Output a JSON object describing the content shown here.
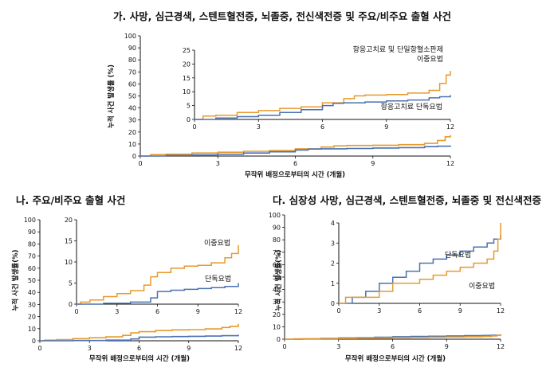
{
  "colors": {
    "dual": "#E69A2E",
    "single": "#4A72B0",
    "axis": "#111111"
  },
  "chart_data": [
    {
      "id": "A",
      "type": "line",
      "title": "가. 사망, 심근경색, 스텐트혈전증, 뇌졸중, 전신색전증 및 주요/비주요 출혈 사건",
      "xlabel": "무작위 배정으로부터의 시간 (개월)",
      "ylabel": "누적 사건 발생률 (%)",
      "xlim": [
        0,
        12
      ],
      "ylim": [
        0,
        100
      ],
      "xticks": [
        "0",
        "3",
        "6",
        "9",
        "12"
      ],
      "yticks": [
        "0",
        "10",
        "20",
        "30",
        "40",
        "50",
        "60",
        "70",
        "80",
        "90",
        "100"
      ],
      "series": [
        {
          "key": "dual",
          "name": "항응고치료 및 단일항혈소판제 이중요법",
          "x": [
            0,
            0.4,
            1,
            2,
            3,
            4,
            5,
            6,
            7,
            7.5,
            8,
            9,
            10,
            11,
            11.5,
            11.8,
            12
          ],
          "y": [
            0,
            1.2,
            1.5,
            2.5,
            3.2,
            4,
            4.5,
            6,
            7.5,
            8.5,
            8.8,
            9,
            9.5,
            10.5,
            13,
            16,
            17.5
          ]
        },
        {
          "key": "single",
          "name": "항응고치료 단독요법",
          "x": [
            0,
            1,
            2,
            3,
            4,
            5,
            6,
            6.5,
            7,
            8,
            9,
            10,
            11,
            11.5,
            12
          ],
          "y": [
            0,
            0.5,
            1,
            1.5,
            2.5,
            3.5,
            5,
            5.8,
            6,
            6.3,
            6.7,
            7,
            7.8,
            8.2,
            8.8
          ]
        }
      ],
      "inset": {
        "xlim": [
          0,
          12
        ],
        "ylim": [
          0,
          25
        ],
        "xticks": [
          "0",
          "3",
          "6",
          "9",
          "12"
        ],
        "yticks": [
          "0",
          "5",
          "10",
          "15",
          "20",
          "25"
        ]
      },
      "labels": {
        "dual_line1": "항응고치료 및 단일항혈소판제",
        "dual_line2": "이중요법",
        "single": "항응고치료 단독요법"
      }
    },
    {
      "id": "B",
      "type": "line",
      "title": "나. 주요/비주요 출혈 사건",
      "xlabel": "무작위 배정으로부터의 시간 (개월)",
      "ylabel": "누적 사건 발생률(%)",
      "xlim": [
        0,
        12
      ],
      "ylim": [
        0,
        100
      ],
      "xticks": [
        "0",
        "3",
        "6",
        "9",
        "12"
      ],
      "yticks": [
        "0",
        "10",
        "20",
        "30",
        "40",
        "50",
        "60",
        "70",
        "80",
        "90",
        "100"
      ],
      "series": [
        {
          "key": "dual",
          "name": "이중요법",
          "x": [
            0,
            0.3,
            1,
            2,
            3,
            4,
            5,
            5.5,
            6,
            7,
            8,
            9,
            10,
            11,
            11.5,
            12
          ],
          "y": [
            0,
            0.5,
            1,
            1.8,
            2.5,
            3.2,
            4.5,
            6.5,
            7.5,
            8.5,
            9,
            9.2,
            9.8,
            11,
            12,
            14
          ]
        },
        {
          "key": "single",
          "name": "단독요법",
          "x": [
            0,
            2,
            4,
            5.5,
            6,
            7,
            8,
            9,
            10,
            11,
            12
          ],
          "y": [
            0,
            0.2,
            0.5,
            1.5,
            3,
            3.3,
            3.5,
            3.7,
            3.9,
            4.2,
            5
          ]
        }
      ],
      "inset": {
        "xlim": [
          0,
          12
        ],
        "ylim": [
          0,
          20
        ],
        "xticks": [
          "0",
          "3",
          "6",
          "9",
          "12"
        ],
        "yticks": [
          "0",
          "5",
          "10",
          "15",
          "20"
        ]
      },
      "labels": {
        "dual": "이중요법",
        "single": "단독요법"
      }
    },
    {
      "id": "C",
      "type": "line",
      "title": "다. 심장성 사망, 심근경색, 스텐트혈전증, 뇌졸중 및 전신색전증",
      "xlabel": "무작위 배정으로부터의 시간 (개월)",
      "ylabel": "누적 사건 발생률(%)",
      "xlim": [
        0,
        12
      ],
      "ylim": [
        0,
        100
      ],
      "xticks": [
        "0",
        "3",
        "6",
        "9",
        "12"
      ],
      "yticks": [
        "0",
        "10",
        "20",
        "30",
        "40",
        "50",
        "60",
        "70",
        "80",
        "90",
        "100"
      ],
      "series": [
        {
          "key": "single",
          "name": "단독요법",
          "x": [
            0,
            1,
            2,
            3,
            4,
            5,
            6,
            7,
            8,
            9,
            10,
            11,
            11.5,
            12
          ],
          "y": [
            0,
            0.3,
            0.6,
            1,
            1.3,
            1.6,
            2,
            2.2,
            2.4,
            2.6,
            2.8,
            3,
            3.2,
            3.4
          ]
        },
        {
          "key": "dual",
          "name": "이중요법",
          "x": [
            0,
            0.5,
            3,
            4,
            6,
            7,
            8,
            9,
            10,
            11,
            11.5,
            11.8,
            12
          ],
          "y": [
            0,
            0.3,
            0.6,
            1,
            1.2,
            1.4,
            1.6,
            1.8,
            2,
            2.2,
            2.6,
            3.2,
            4
          ]
        }
      ],
      "inset": {
        "xlim": [
          0,
          12
        ],
        "ylim": [
          0,
          4
        ],
        "xticks": [
          "0",
          "3",
          "6",
          "9",
          "12"
        ],
        "yticks": [
          "0",
          "1",
          "2",
          "3",
          "4"
        ]
      },
      "labels": {
        "single": "단독요법",
        "dual": "이중요법"
      }
    }
  ]
}
